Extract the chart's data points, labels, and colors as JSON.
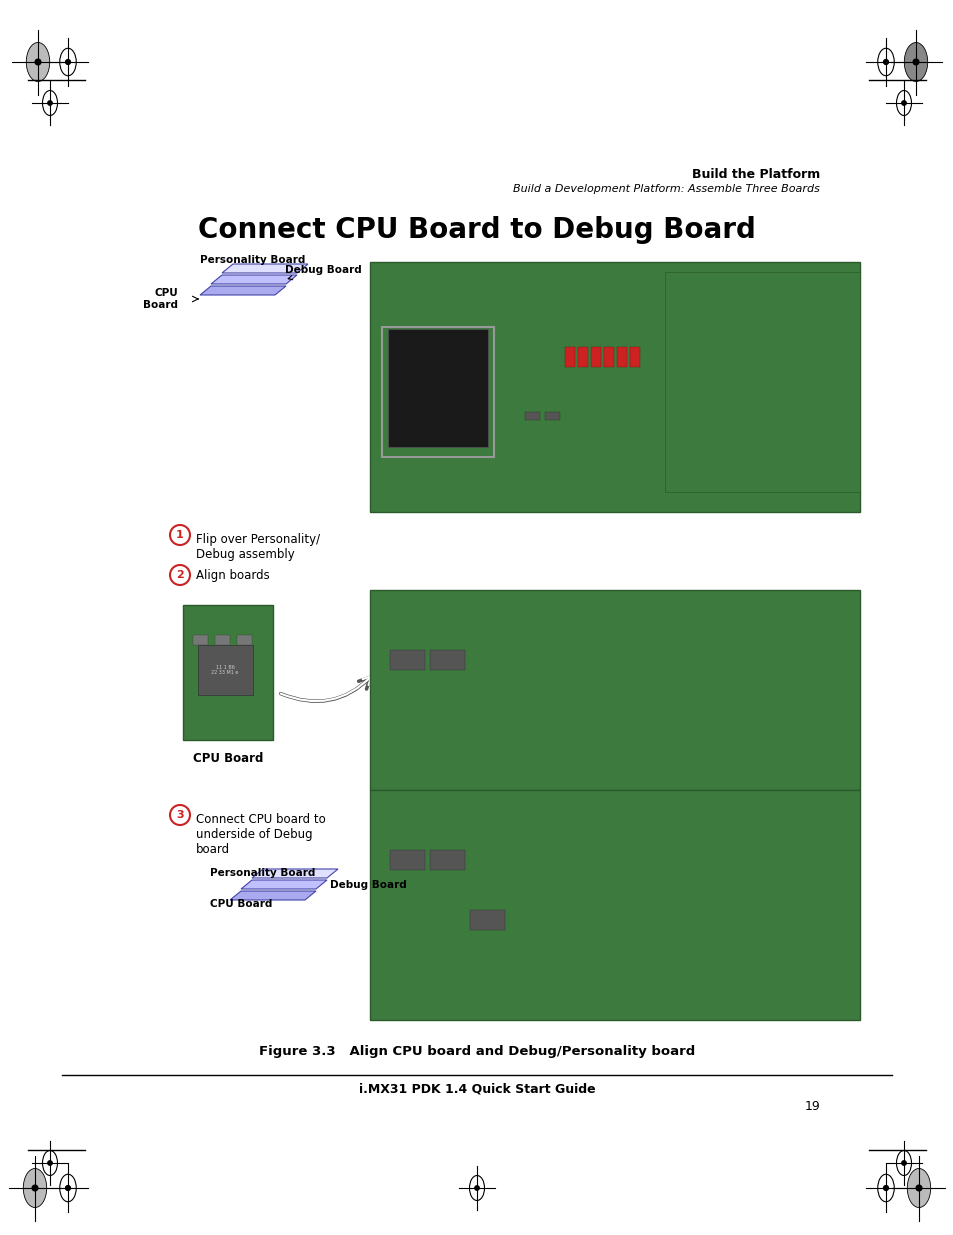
{
  "bg_color": "#ffffff",
  "page_width": 9.54,
  "page_height": 12.35,
  "header_bold": "Build the Platform",
  "header_italic": "Build a Development Platform: Assemble Three Boards",
  "main_title": "Connect CPU Board to Debug Board",
  "figure_caption": "Figure 3.3   Align CPU board and Debug/Personality board",
  "footer_center": "i.MX31 PDK 1.4 Quick Start Guide",
  "page_number": "19",
  "step1_circle": "1",
  "step1_text": "Flip over Personality/\nDebug assembly",
  "step2_circle": "2",
  "step2_text": "Align boards",
  "step3_circle": "3",
  "step3_text": "Connect CPU board to\nunderside of Debug\nboard",
  "label_personality_board_1": "Personality Board",
  "label_debug_board_1": "Debug Board",
  "label_cpu_board_1": "CPU\nBoard",
  "label_cpu_board_2": "CPU Board",
  "label_personality_board_3": "Personality Board",
  "label_debug_board_3": "Debug Board",
  "label_cpu_board_3": "CPU Board",
  "board_color_blue": "#6666cc",
  "board_color_blue_light": "#aaaaee",
  "board_color_blue_dark": "#4444aa",
  "board_color_white": "#e8e8ff",
  "pcb_green": "#3a7a3a",
  "pcb_dark": "#1e5c1e"
}
